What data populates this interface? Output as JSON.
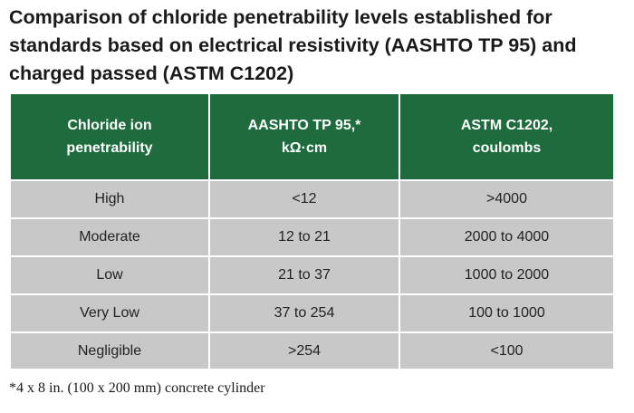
{
  "title": "Comparison of chloride penetrability levels established for standards based on electrical resistivity (AASHTO TP 95) and charged passed (ASTM C1202)",
  "table": {
    "headers": [
      [
        "Chloride ion",
        "penetrability"
      ],
      [
        "AASHTO TP 95,*",
        "kΩ·cm"
      ],
      [
        "ASTM C1202,",
        "coulombs"
      ]
    ],
    "rows": [
      [
        "High",
        "<12",
        ">4000"
      ],
      [
        "Moderate",
        "12 to 21",
        "2000 to 4000"
      ],
      [
        "Low",
        "21 to 37",
        "1000 to 2000"
      ],
      [
        "Very Low",
        "37 to 254",
        "100 to 1000"
      ],
      [
        "Negligible",
        ">254",
        "<100"
      ]
    ]
  },
  "footnote": "*4 x 8 in. (100 x 200 mm) concrete cylinder",
  "colors": {
    "header_bg": "#1e6b3d",
    "header_text": "#ffffff",
    "cell_bg": "#c8c8c8"
  }
}
